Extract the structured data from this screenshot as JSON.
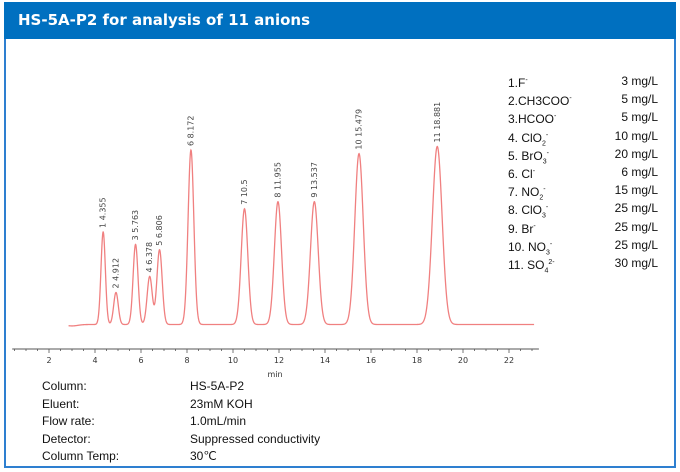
{
  "header": {
    "title": "HS-5A-P2 for analysis of 11 anions",
    "background_color": "#0070c0",
    "border_color": "#2e7fd0"
  },
  "legend": [
    {
      "label": "1.F",
      "charge": "-",
      "conc": "3 mg/L"
    },
    {
      "label": "2.CH3COO",
      "charge": "-",
      "conc": "5 mg/L"
    },
    {
      "label": "3.HCOO",
      "charge": "-",
      "conc": "5 mg/L"
    },
    {
      "label": "4. ClO",
      "sub": "2",
      "charge": "-",
      "conc": "10 mg/L"
    },
    {
      "label": "5. BrO",
      "sub": "3",
      "charge": "-",
      "conc": "20 mg/L"
    },
    {
      "label": "6. Cl",
      "charge": "-",
      "conc": "6 mg/L"
    },
    {
      "label": "7. NO",
      "sub": "2",
      "charge": "-",
      "conc": "15 mg/L"
    },
    {
      "label": "8. ClO",
      "sub": "3",
      "charge": "-",
      "conc": "25 mg/L"
    },
    {
      "label": "9. Br",
      "charge": "-",
      "conc": "25 mg/L"
    },
    {
      "label": "10. NO",
      "sub": "3",
      "charge": "-",
      "conc": "25 mg/L"
    },
    {
      "label": "11. SO",
      "sub": "4",
      "charge": "2-",
      "conc": "30 mg/L"
    }
  ],
  "conditions": [
    {
      "key": "Column:",
      "value": "HS-5A-P2"
    },
    {
      "key": "Eluent:",
      "value": "23mM KOH"
    },
    {
      "key": "Flow rate:",
      "value": "1.0mL/min"
    },
    {
      "key": "Detector:",
      "value": "Suppressed conductivity"
    },
    {
      "key": "Column Temp:",
      "value": "30℃"
    }
  ],
  "chart_data": {
    "type": "line",
    "title": "HS-5A-P2 for analysis of 11 anions",
    "xlabel": "min",
    "ylabel": "",
    "xlim": [
      0.4,
      23.3
    ],
    "x_ticks": [
      2,
      4,
      6,
      8,
      10,
      12,
      14,
      16,
      18,
      20,
      22
    ],
    "grid": false,
    "line_color": "#f08080",
    "series": [
      {
        "name": "chromatogram",
        "peaks": [
          {
            "id": 1,
            "ion": "F-",
            "retention_time": 4.355,
            "label": "1  4.355",
            "relative_height": 0.52
          },
          {
            "id": 2,
            "ion": "CH3COO-",
            "retention_time": 4.912,
            "label": "2  4.912",
            "relative_height": 0.18
          },
          {
            "id": 3,
            "ion": "HCOO-",
            "retention_time": 5.763,
            "label": "3  5.763",
            "relative_height": 0.45
          },
          {
            "id": 4,
            "ion": "ClO2-",
            "retention_time": 6.378,
            "label": "4  6.378",
            "relative_height": 0.27
          },
          {
            "id": 5,
            "ion": "BrO3-",
            "retention_time": 6.806,
            "label": "5  6.806",
            "relative_height": 0.42
          },
          {
            "id": 6,
            "ion": "Cl-",
            "retention_time": 8.172,
            "label": "6  8.172",
            "relative_height": 0.98
          },
          {
            "id": 7,
            "ion": "NO2-",
            "retention_time": 10.5,
            "label": "7  10.5",
            "relative_height": 0.65
          },
          {
            "id": 8,
            "ion": "ClO3-",
            "retention_time": 11.955,
            "label": "8  11.955",
            "relative_height": 0.69
          },
          {
            "id": 9,
            "ion": "Br-",
            "retention_time": 13.537,
            "label": "9  13.537",
            "relative_height": 0.69
          },
          {
            "id": 10,
            "ion": "NO3-",
            "retention_time": 15.479,
            "label": "10  15.479",
            "relative_height": 0.96
          },
          {
            "id": 11,
            "ion": "SO4 2-",
            "retention_time": 18.881,
            "label": "11  18.881",
            "relative_height": 1.0
          }
        ]
      }
    ]
  }
}
